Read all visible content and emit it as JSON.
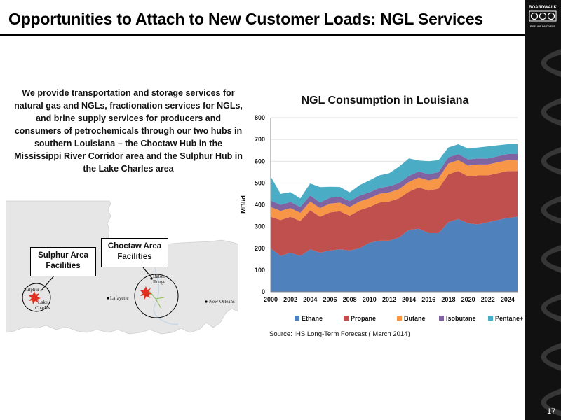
{
  "title": "Opportunities to Attach to New Customer Loads: NGL Services",
  "description": "We provide transportation and storage services for natural gas and NGLs, fractionation services for NGLs, and brine supply services for producers and consumers of petrochemicals through our two hubs in southern Louisiana – the Choctaw Hub in the Mississippi River Corridor area and the Sulphur Hub in the Lake Charles area",
  "page_number": "17",
  "logo": {
    "brand_text": "BOARDWALK",
    "sub_text": "PIPELINE PARTNERS"
  },
  "map": {
    "callouts": {
      "sulphur_line1": "Sulphur Area",
      "sulphur_line2": "Facilities",
      "choctaw_line1": "Choctaw Area",
      "choctaw_line2": "Facilities"
    },
    "places": {
      "sulphur": "Sulphur",
      "lake": "Lake",
      "charles": "Charles",
      "lafayette": "Lafayette",
      "baton": "Baton",
      "rouge": "Rouge",
      "new_orleans": "New Orleans"
    }
  },
  "source": "Source: IHS Long-Term Forecast ( March 2014)",
  "chart_data": {
    "type": "area",
    "stacked": true,
    "title": "NGL Consumption in Louisiana",
    "ylabel": "MBl/d",
    "xlabel": "",
    "ylim": [
      0,
      800
    ],
    "yticks": [
      0,
      100,
      200,
      300,
      400,
      500,
      600,
      700,
      800
    ],
    "xticks": [
      2000,
      2002,
      2004,
      2006,
      2008,
      2010,
      2012,
      2014,
      2016,
      2018,
      2020,
      2022,
      2024
    ],
    "x": [
      2000,
      2001,
      2002,
      2003,
      2004,
      2005,
      2006,
      2007,
      2008,
      2009,
      2010,
      2011,
      2012,
      2013,
      2014,
      2015,
      2016,
      2017,
      2018,
      2019,
      2020,
      2021,
      2022,
      2023,
      2024,
      2025
    ],
    "grid": true,
    "legend_position": "bottom",
    "series": [
      {
        "name": "Ethane",
        "color": "#4f81bd",
        "values": [
          200,
          165,
          180,
          165,
          195,
          180,
          190,
          195,
          190,
          200,
          225,
          235,
          235,
          250,
          285,
          290,
          270,
          270,
          320,
          335,
          315,
          310,
          320,
          330,
          340,
          345
        ]
      },
      {
        "name": "Propane",
        "color": "#c0504d",
        "values": [
          145,
          165,
          165,
          160,
          180,
          165,
          175,
          175,
          160,
          175,
          165,
          175,
          180,
          180,
          175,
          190,
          195,
          205,
          220,
          220,
          215,
          225,
          215,
          215,
          215,
          210
        ]
      },
      {
        "name": "Butane",
        "color": "#f79646",
        "values": [
          45,
          42,
          40,
          38,
          40,
          40,
          40,
          40,
          40,
          40,
          40,
          40,
          42,
          42,
          45,
          45,
          47,
          47,
          50,
          50,
          50,
          50,
          50,
          50,
          50,
          50
        ]
      },
      {
        "name": "Isobutane",
        "color": "#8064a2",
        "values": [
          30,
          28,
          28,
          27,
          28,
          26,
          28,
          27,
          27,
          27,
          27,
          27,
          28,
          28,
          28,
          28,
          28,
          28,
          28,
          28,
          28,
          28,
          28,
          28,
          28,
          28
        ]
      },
      {
        "name": "Pentane+",
        "color": "#4bacc6",
        "values": [
          110,
          50,
          45,
          40,
          55,
          70,
          50,
          45,
          40,
          48,
          55,
          58,
          60,
          75,
          80,
          50,
          60,
          55,
          45,
          45,
          50,
          50,
          55,
          50,
          45,
          45
        ]
      }
    ]
  }
}
